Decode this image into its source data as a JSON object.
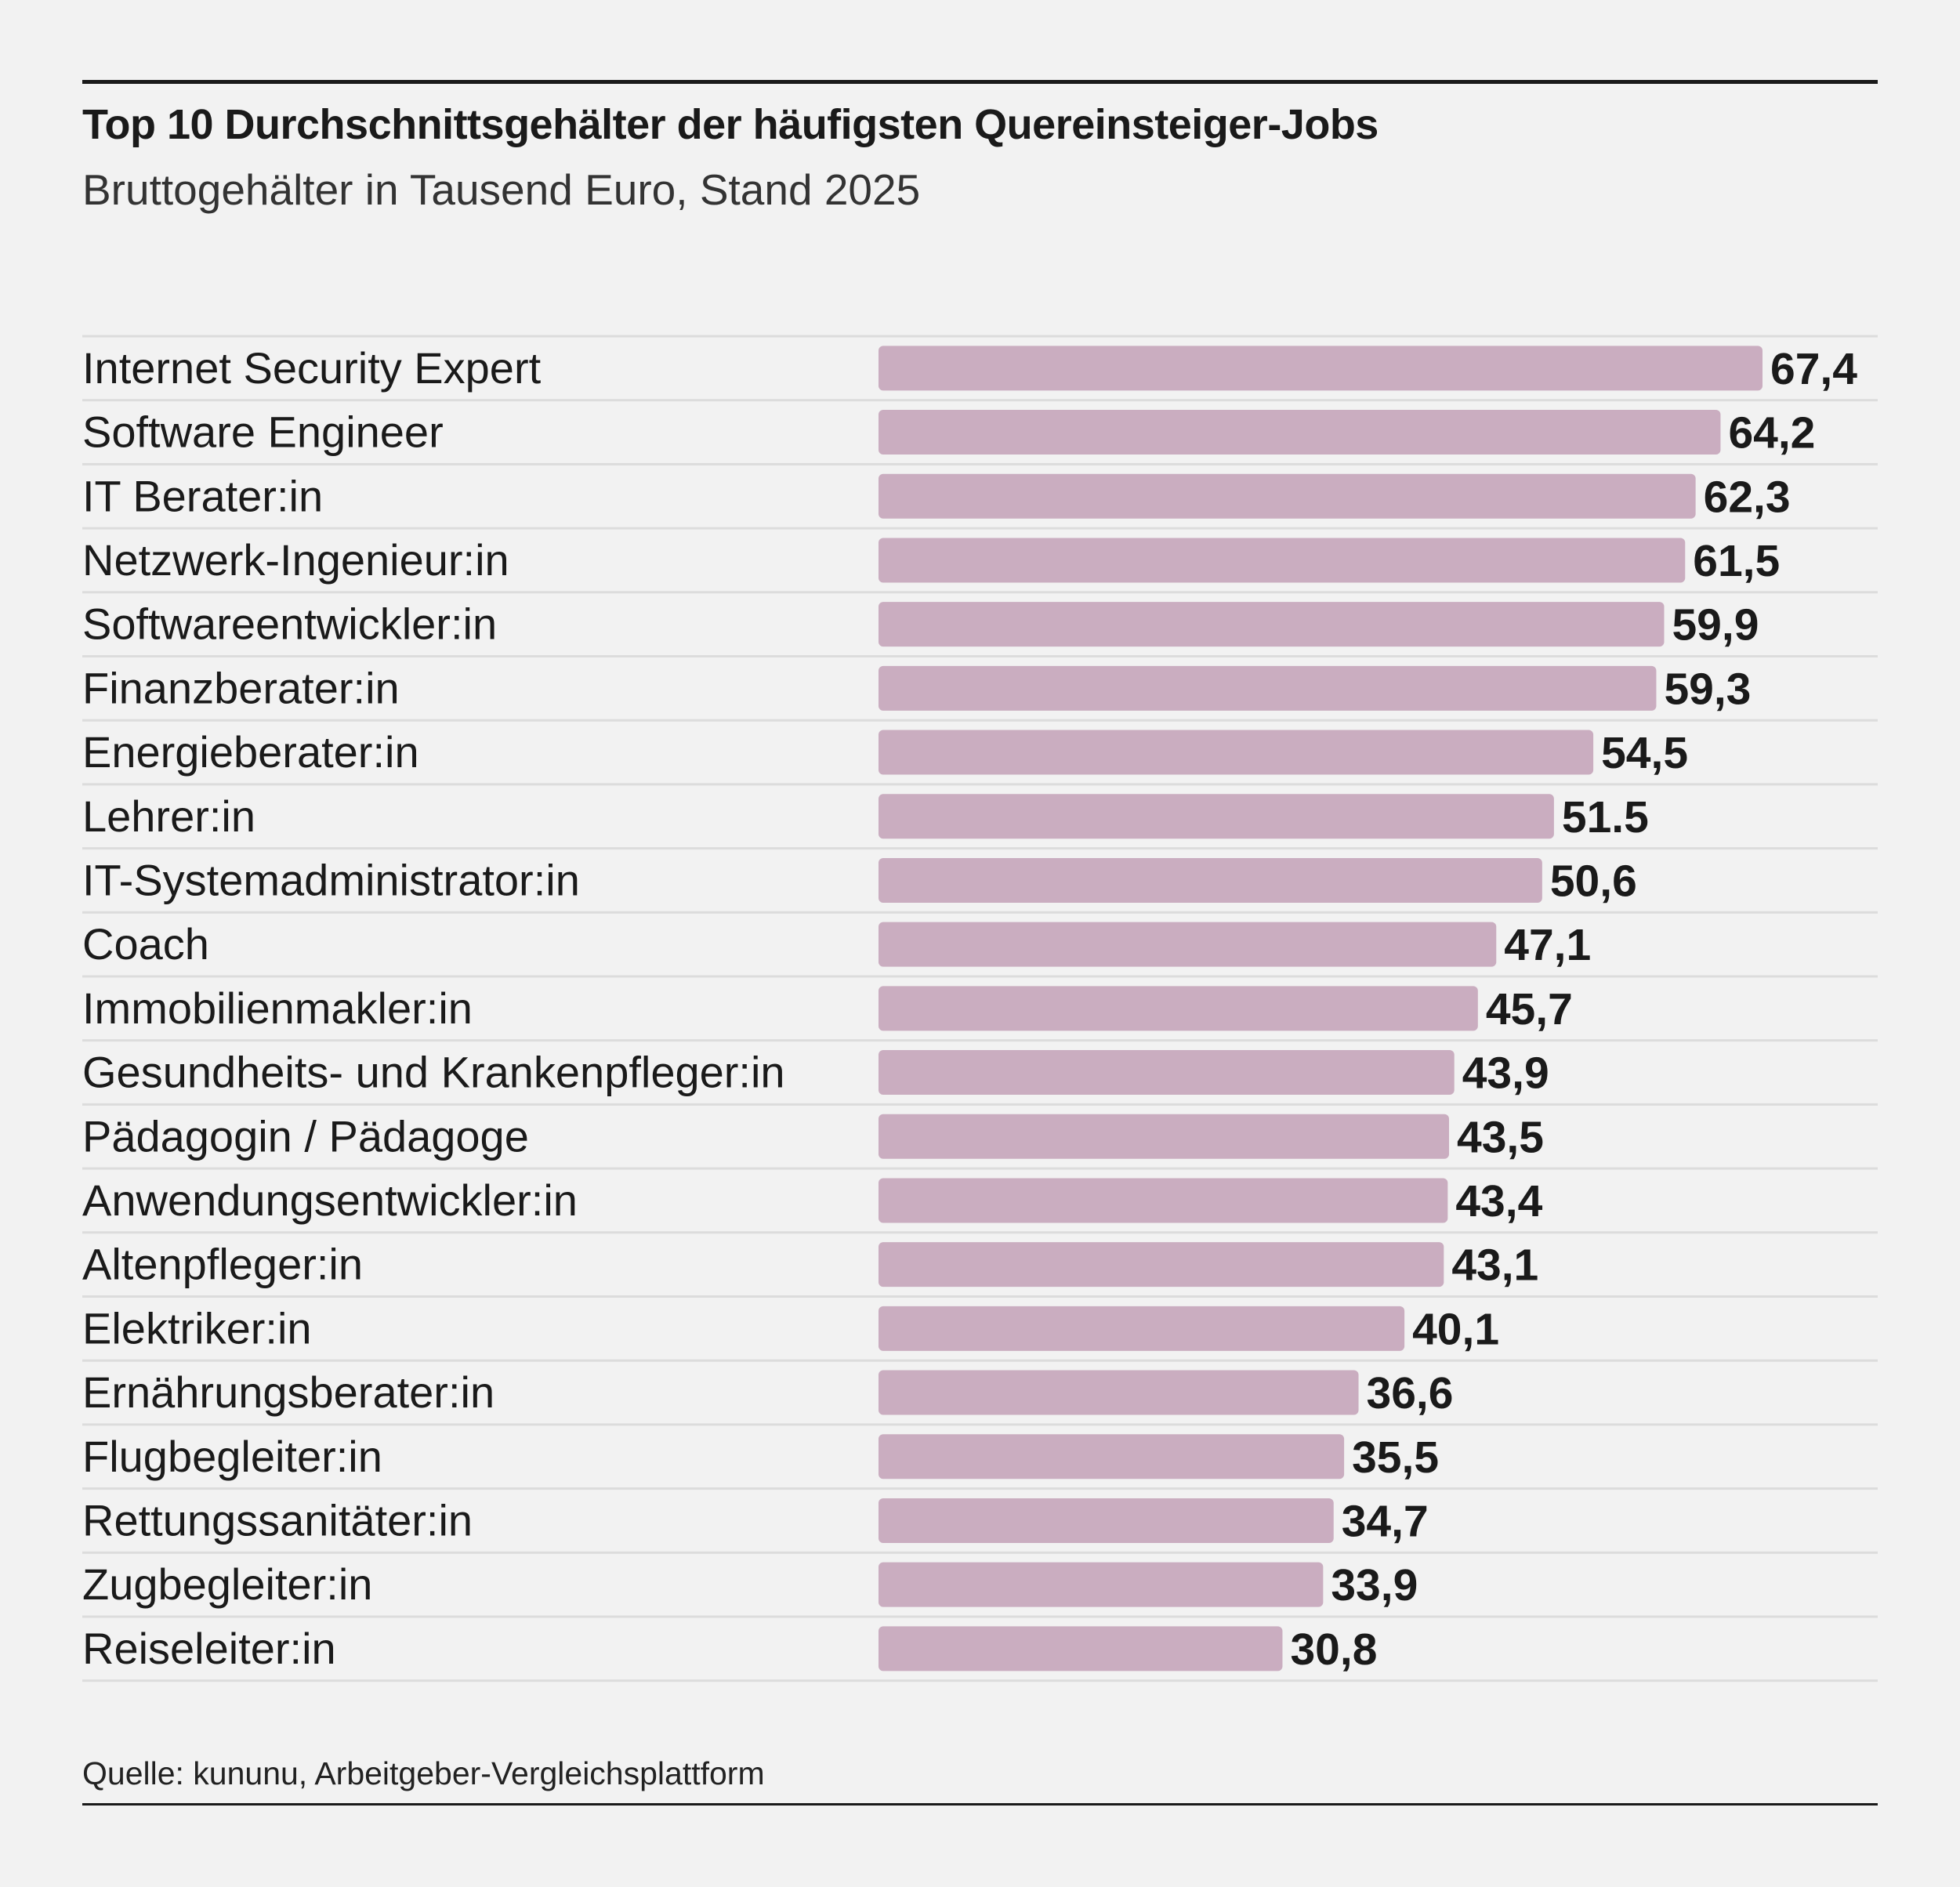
{
  "chart_data": {
    "type": "bar",
    "orientation": "horizontal",
    "title": "Top 10 Durchschnittsgehälter der häufigsten Quereinsteiger-Jobs",
    "subtitle": "Bruttogehälter in Tausend Euro, Stand 2025",
    "categories": [
      "Internet Security Expert",
      "Software Engineer",
      "IT Berater:in",
      "Netzwerk-Ingenieur:in",
      "Softwareentwickler:in",
      "Finanzberater:in",
      "Energieberater:in",
      "Lehrer:in",
      "IT-Systemadministrator:in",
      "Coach",
      "Immobilienmakler:in",
      "Gesundheits- und Krankenpfleger:in",
      "Pädagogin / Pädagoge",
      "Anwendungsentwickler:in",
      "Altenpfleger:in",
      "Elektriker:in",
      "Ernährungsberater:in",
      "Flugbegleiter:in",
      "Rettungssanitäter:in",
      "Zugbegleiter:in",
      "Reiseleiter:in"
    ],
    "values": [
      67.4,
      64.2,
      62.3,
      61.5,
      59.9,
      59.3,
      54.5,
      51.5,
      50.6,
      47.1,
      45.7,
      43.9,
      43.5,
      43.4,
      43.1,
      40.1,
      36.6,
      35.5,
      34.7,
      33.9,
      30.8
    ],
    "value_labels": [
      "67,4",
      "64,2",
      "62,3",
      "61,5",
      "59,9",
      "59,3",
      "54,5",
      "51.5",
      "50,6",
      "47,1",
      "45,7",
      "43,9",
      "43,5",
      "43,4",
      "43,1",
      "40,1",
      "36,6",
      "35,5",
      "34,7",
      "33,9",
      "30,8"
    ],
    "xlim": [
      0,
      67.4
    ],
    "grid": false,
    "bar_color": "#caadc0",
    "background": "#f2f2f2",
    "separator_color": "#dcdcdc"
  },
  "source": "Quelle: kununu, Arbeitgeber-Vergleichsplattform"
}
